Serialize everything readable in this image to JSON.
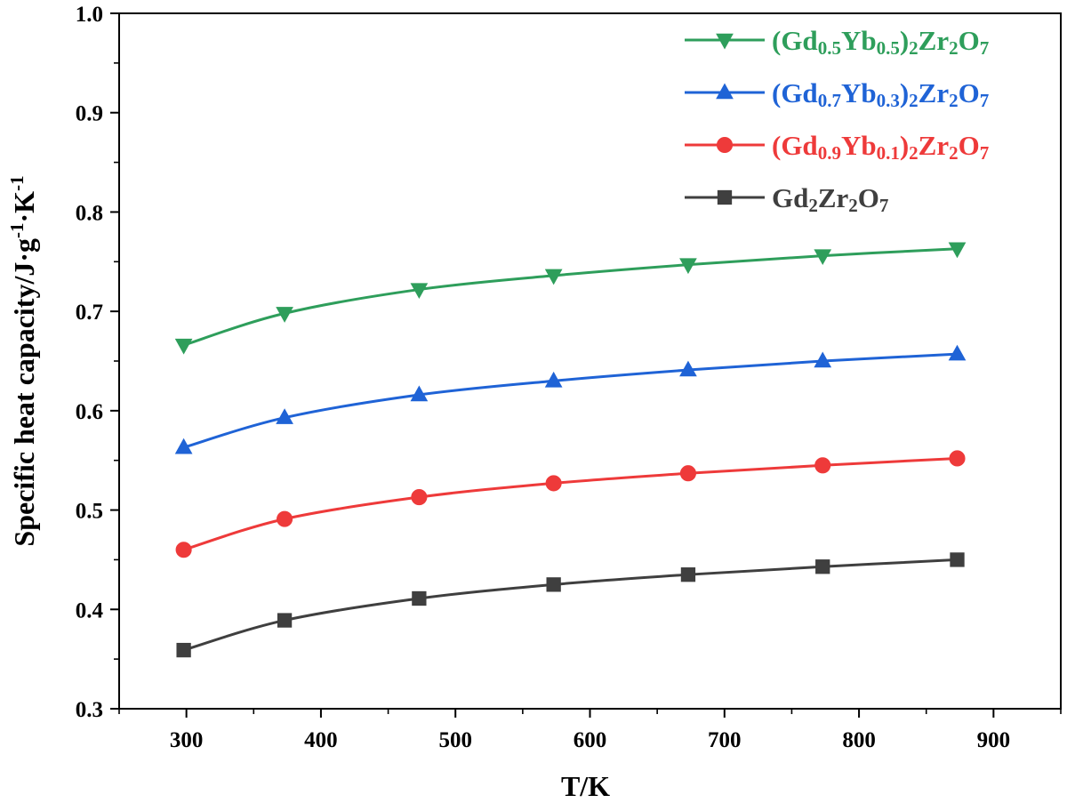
{
  "chart_data": {
    "type": "line",
    "xlabel": "T/K",
    "ylabel": "Specific heat capacity/J·g-1·K-1",
    "ylabel_parts": [
      {
        "t": "Specific heat capacity/J·g",
        "s": "normal"
      },
      {
        "t": "-1",
        "s": "super"
      },
      {
        "t": "·K",
        "s": "normal"
      },
      {
        "t": "-1",
        "s": "super"
      }
    ],
    "xlim": [
      250,
      950
    ],
    "ylim": [
      0.3,
      1.0
    ],
    "xticks": [
      "300",
      "400",
      "500",
      "600",
      "700",
      "800",
      "900"
    ],
    "yticks": [
      "0.3",
      "0.4",
      "0.5",
      "0.6",
      "0.7",
      "0.8",
      "0.9",
      "1.0"
    ],
    "x": [
      298,
      373,
      473,
      573,
      673,
      773,
      873
    ],
    "grid": false,
    "legend_position": "top-right",
    "series": [
      {
        "name": "(Gd0.5Yb0.5)2Zr2O7",
        "name_parts": [
          {
            "t": "(Gd",
            "s": "normal"
          },
          {
            "t": "0.5",
            "s": "sub"
          },
          {
            "t": "Yb",
            "s": "normal"
          },
          {
            "t": "0.5",
            "s": "sub"
          },
          {
            "t": ")",
            "s": "normal"
          },
          {
            "t": "2",
            "s": "sub"
          },
          {
            "t": "Zr",
            "s": "normal"
          },
          {
            "t": "2",
            "s": "sub"
          },
          {
            "t": "O",
            "s": "normal"
          },
          {
            "t": "7",
            "s": "sub"
          }
        ],
        "color": "#2e9e5b",
        "marker": "triangle-down",
        "values": [
          0.666,
          0.698,
          0.722,
          0.736,
          0.747,
          0.756,
          0.763
        ]
      },
      {
        "name": "(Gd0.7Yb0.3)2Zr2O7",
        "name_parts": [
          {
            "t": "(Gd",
            "s": "normal"
          },
          {
            "t": "0.7",
            "s": "sub"
          },
          {
            "t": "Yb",
            "s": "normal"
          },
          {
            "t": "0.3",
            "s": "sub"
          },
          {
            "t": ")",
            "s": "normal"
          },
          {
            "t": "2",
            "s": "sub"
          },
          {
            "t": "Zr",
            "s": "normal"
          },
          {
            "t": "2",
            "s": "sub"
          },
          {
            "t": "O",
            "s": "normal"
          },
          {
            "t": "7",
            "s": "sub"
          }
        ],
        "color": "#1f63d6",
        "marker": "triangle-up",
        "values": [
          0.563,
          0.593,
          0.616,
          0.63,
          0.641,
          0.65,
          0.657
        ]
      },
      {
        "name": "(Gd0.9Yb0.1)2Zr2O7",
        "name_parts": [
          {
            "t": "(Gd",
            "s": "normal"
          },
          {
            "t": "0.9",
            "s": "sub"
          },
          {
            "t": "Yb",
            "s": "normal"
          },
          {
            "t": "0.1",
            "s": "sub"
          },
          {
            "t": ")",
            "s": "normal"
          },
          {
            "t": "2",
            "s": "sub"
          },
          {
            "t": "Zr",
            "s": "normal"
          },
          {
            "t": "2",
            "s": "sub"
          },
          {
            "t": "O",
            "s": "normal"
          },
          {
            "t": "7",
            "s": "sub"
          }
        ],
        "color": "#ee3a3a",
        "marker": "circle",
        "values": [
          0.46,
          0.491,
          0.513,
          0.527,
          0.537,
          0.545,
          0.552
        ]
      },
      {
        "name": "Gd2Zr2O7",
        "name_parts": [
          {
            "t": "Gd",
            "s": "normal"
          },
          {
            "t": "2",
            "s": "sub"
          },
          {
            "t": "Zr",
            "s": "normal"
          },
          {
            "t": "2",
            "s": "sub"
          },
          {
            "t": "O",
            "s": "normal"
          },
          {
            "t": "7",
            "s": "sub"
          }
        ],
        "color": "#3f3f3f",
        "legend_text_color": "#3f3f3f",
        "marker": "square",
        "values": [
          0.359,
          0.389,
          0.411,
          0.425,
          0.435,
          0.443,
          0.45
        ]
      }
    ]
  }
}
